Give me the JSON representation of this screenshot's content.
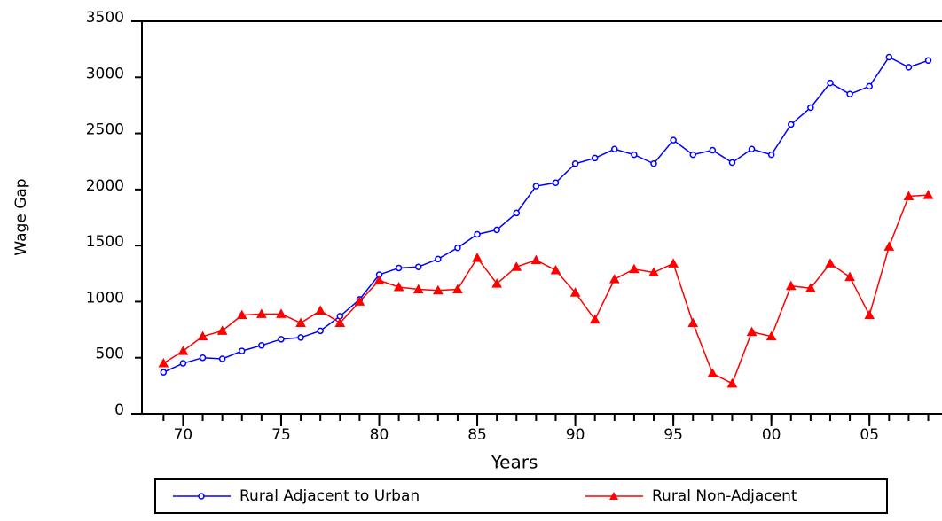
{
  "chart_data": {
    "type": "line",
    "x_label": "Years",
    "y_label": "Wage Gap",
    "x": [
      1969,
      1970,
      1971,
      1972,
      1973,
      1974,
      1975,
      1976,
      1977,
      1978,
      1979,
      1980,
      1981,
      1982,
      1983,
      1984,
      1985,
      1986,
      1987,
      1988,
      1989,
      1990,
      1991,
      1992,
      1993,
      1994,
      1995,
      1996,
      1997,
      1998,
      1999,
      2000,
      2001,
      2002,
      2003,
      2004,
      2005,
      2006,
      2007,
      2008
    ],
    "series": [
      {
        "name": "Rural Adjacent to Urban",
        "color": "#0000ff",
        "marker": "circle",
        "values": [
          370,
          450,
          500,
          490,
          560,
          610,
          665,
          680,
          740,
          870,
          1020,
          1240,
          1300,
          1310,
          1380,
          1480,
          1600,
          1640,
          1790,
          2030,
          2060,
          2230,
          2280,
          2360,
          2310,
          2230,
          2440,
          2310,
          2350,
          2240,
          2360,
          2310,
          2580,
          2730,
          2950,
          2850,
          2920,
          3180,
          3090,
          3150
        ]
      },
      {
        "name": "Rural Non-Adjacent",
        "color": "#ff0000",
        "marker": "triangle",
        "values": [
          450,
          560,
          690,
          740,
          880,
          890,
          890,
          810,
          920,
          810,
          1000,
          1190,
          1130,
          1110,
          1100,
          1110,
          1390,
          1160,
          1310,
          1370,
          1280,
          1080,
          840,
          1200,
          1290,
          1260,
          1340,
          810,
          360,
          270,
          730,
          690,
          1140,
          1120,
          1340,
          1220,
          880,
          1490,
          1940,
          1950
        ]
      }
    ],
    "xlim": [
      1967.9,
      2008.7
    ],
    "xticks": [
      {
        "value": 1970,
        "label": "70"
      },
      {
        "value": 1975,
        "label": "75"
      },
      {
        "value": 1980,
        "label": "80"
      },
      {
        "value": 1985,
        "label": "85"
      },
      {
        "value": 1990,
        "label": "90"
      },
      {
        "value": 1995,
        "label": "95"
      },
      {
        "value": 2000,
        "label": "00"
      },
      {
        "value": 2005,
        "label": "05"
      }
    ],
    "ylim": [
      0,
      3500
    ],
    "yticks": [
      0,
      500,
      1000,
      1500,
      2000,
      2500,
      3000,
      3500
    ],
    "legend": "bottom"
  }
}
